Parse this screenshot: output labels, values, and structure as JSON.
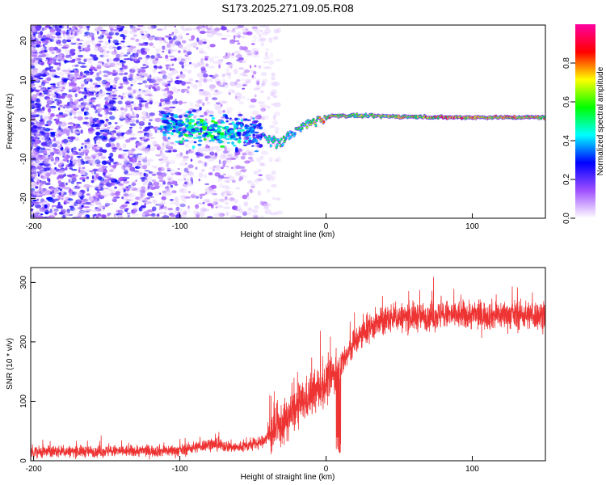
{
  "chart_data": [
    {
      "type": "heatmap",
      "title": "S173.2025.271.09.05.R08",
      "xlabel": "Height of straight line (km)",
      "ylabel": "Frequency (Hz)",
      "xlim": [
        -202,
        150
      ],
      "ylim": [
        -25,
        24
      ],
      "xticks": [
        -200,
        -100,
        0,
        100
      ],
      "yticks": [
        -20,
        -10,
        0,
        10,
        20
      ],
      "xtick_labels": [
        "-200",
        "-100",
        "0",
        "100"
      ],
      "ytick_labels": [
        "-20",
        "-10",
        "0",
        "10",
        "20"
      ],
      "colorbar": {
        "label": "Normalized spectral amplitude",
        "range": [
          0,
          1
        ],
        "ticks": [
          0.0,
          0.2,
          0.4,
          0.6,
          0.8
        ],
        "tick_labels": [
          "0.0",
          "0.2",
          "0.4",
          "0.6",
          "0.8"
        ],
        "colors": [
          "#ffffff",
          "#a050ff",
          "#0000ff",
          "#00ffff",
          "#00ff00",
          "#ffff00",
          "#ff0000",
          "#ff00a0"
        ]
      },
      "ridge": [
        {
          "x": -110,
          "y": -1.0,
          "a": 0.45
        },
        {
          "x": -95,
          "y": -2.0,
          "a": 0.55
        },
        {
          "x": -80,
          "y": -2.5,
          "a": 0.6
        },
        {
          "x": -70,
          "y": -3.0,
          "a": 0.55
        },
        {
          "x": -45,
          "y": -3.5,
          "a": 0.35
        },
        {
          "x": -40,
          "y": -5.0,
          "a": 0.5
        },
        {
          "x": -32,
          "y": -6.0,
          "a": 0.55
        },
        {
          "x": -25,
          "y": -4.0,
          "a": 0.5
        },
        {
          "x": -15,
          "y": -1.5,
          "a": 0.55
        },
        {
          "x": -5,
          "y": 0.0,
          "a": 0.7
        },
        {
          "x": 5,
          "y": 1.0,
          "a": 0.75
        },
        {
          "x": 20,
          "y": 1.0,
          "a": 0.65
        },
        {
          "x": 50,
          "y": 0.8,
          "a": 0.7
        },
        {
          "x": 80,
          "y": 0.6,
          "a": 0.8
        },
        {
          "x": 110,
          "y": 0.6,
          "a": 0.75
        },
        {
          "x": 150,
          "y": 0.6,
          "a": 0.75
        }
      ]
    },
    {
      "type": "line",
      "xlabel": "Height of straight line (km)",
      "ylabel": "SNR (10 * v/v)",
      "xlim": [
        -202,
        150
      ],
      "ylim": [
        0,
        325
      ],
      "xticks": [
        -200,
        -100,
        0,
        100
      ],
      "yticks": [
        0,
        100,
        200,
        300
      ],
      "xtick_labels": [
        "-200",
        "-100",
        "0",
        "100"
      ],
      "ytick_labels": [
        "0",
        "100",
        "200",
        "300"
      ],
      "color": "#ee3333",
      "trend": [
        {
          "x": -202,
          "y": 15
        },
        {
          "x": -100,
          "y": 17
        },
        {
          "x": -80,
          "y": 28
        },
        {
          "x": -60,
          "y": 22
        },
        {
          "x": -45,
          "y": 30
        },
        {
          "x": -30,
          "y": 60
        },
        {
          "x": -20,
          "y": 90
        },
        {
          "x": -10,
          "y": 110
        },
        {
          "x": 0,
          "y": 130
        },
        {
          "x": 10,
          "y": 160
        },
        {
          "x": 20,
          "y": 200
        },
        {
          "x": 30,
          "y": 225
        },
        {
          "x": 45,
          "y": 240
        },
        {
          "x": 80,
          "y": 245
        },
        {
          "x": 150,
          "y": 245
        }
      ]
    }
  ]
}
